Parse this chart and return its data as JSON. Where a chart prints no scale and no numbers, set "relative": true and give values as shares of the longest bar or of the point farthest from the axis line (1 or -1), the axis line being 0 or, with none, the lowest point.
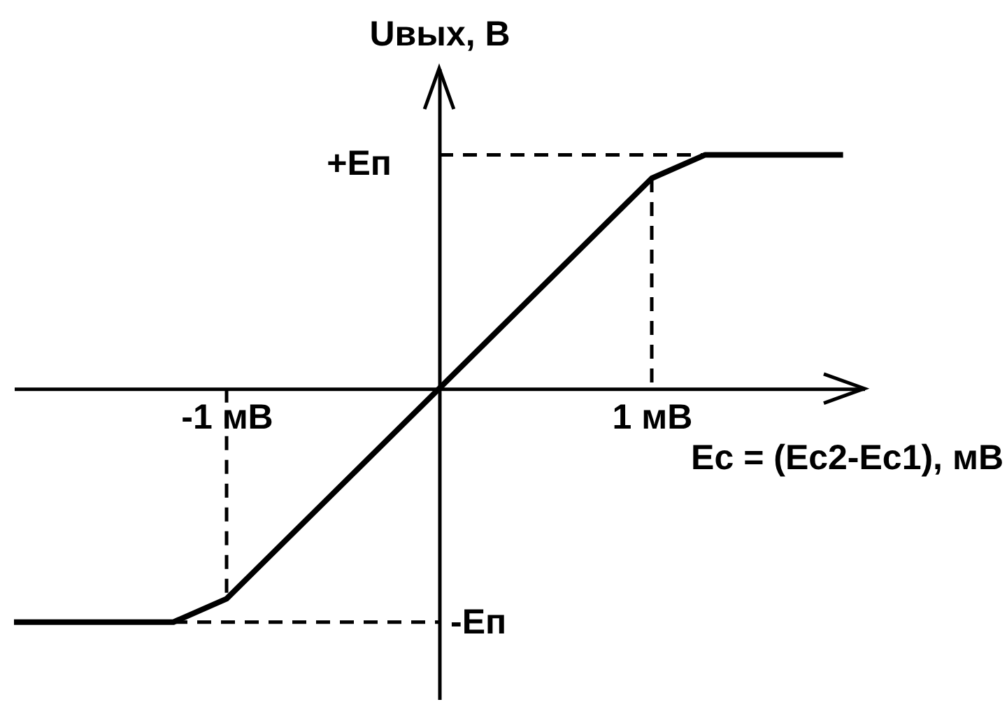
{
  "chart_data": {
    "type": "line",
    "relative": true,
    "xlabel": "Eс = (Eс2-Eс1), мВ",
    "ylabel": "Uвых, В",
    "xlim": [
      -2,
      2
    ],
    "xticks": [
      {
        "value": -1,
        "label": "-1 мВ"
      },
      {
        "value": 1,
        "label": "1 мВ"
      }
    ],
    "annotations": [
      {
        "text": "+Eп",
        "x": 0,
        "y": 1
      },
      {
        "text": "-Eп",
        "x": 0,
        "y": -1
      }
    ],
    "series": [
      {
        "color": "#000000",
        "line_style": "dashed",
        "x": [
          0,
          1.25
        ],
        "values": [
          1,
          1
        ]
      },
      {
        "color": "#000000",
        "line_style": "dashed",
        "x": [
          1,
          1
        ],
        "values": [
          0.9,
          0
        ]
      },
      {
        "color": "#000000",
        "line_style": "dashed",
        "x": [
          -1,
          -1
        ],
        "values": [
          0,
          -0.9
        ]
      },
      {
        "color": "#000000",
        "line_style": "dashed",
        "x": [
          -1.25,
          0
        ],
        "values": [
          -1,
          -1
        ]
      },
      {
        "color": "#000000",
        "line_style": "solid",
        "x": [
          -2,
          -1.25,
          -1,
          1,
          1.25,
          1.9
        ],
        "values": [
          -1,
          -1,
          -0.9,
          0.9,
          1,
          1
        ]
      }
    ],
    "grid": false
  }
}
